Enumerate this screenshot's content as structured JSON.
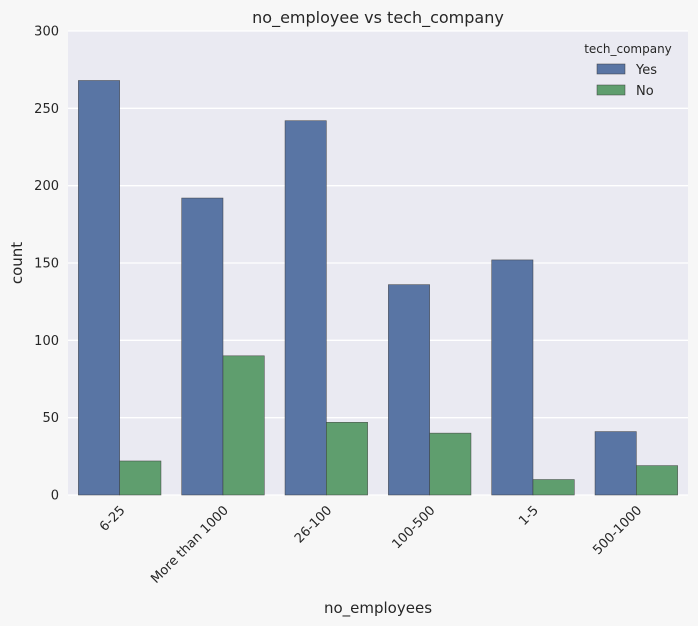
{
  "chart_data": {
    "type": "bar",
    "title": "no_employee vs tech_company",
    "xlabel": "no_employees",
    "ylabel": "count",
    "categories": [
      "6-25",
      "More than 1000",
      "26-100",
      "100-500",
      "1-5",
      "500-1000"
    ],
    "series": [
      {
        "name": "Yes",
        "values": [
          268,
          192,
          242,
          136,
          152,
          41
        ]
      },
      {
        "name": "No",
        "values": [
          22,
          90,
          47,
          40,
          10,
          19
        ]
      }
    ],
    "ylim": [
      0,
      300
    ],
    "yticks": [
      "0",
      "50",
      "100",
      "150",
      "200",
      "250",
      "300"
    ],
    "grid": true,
    "legend": {
      "title": "tech_company",
      "placement": "top-right"
    },
    "colors": {
      "Yes": "#5975a4",
      "No": "#5f9e6e",
      "background": "#eaeaf2",
      "grid": "#ffffff"
    }
  }
}
